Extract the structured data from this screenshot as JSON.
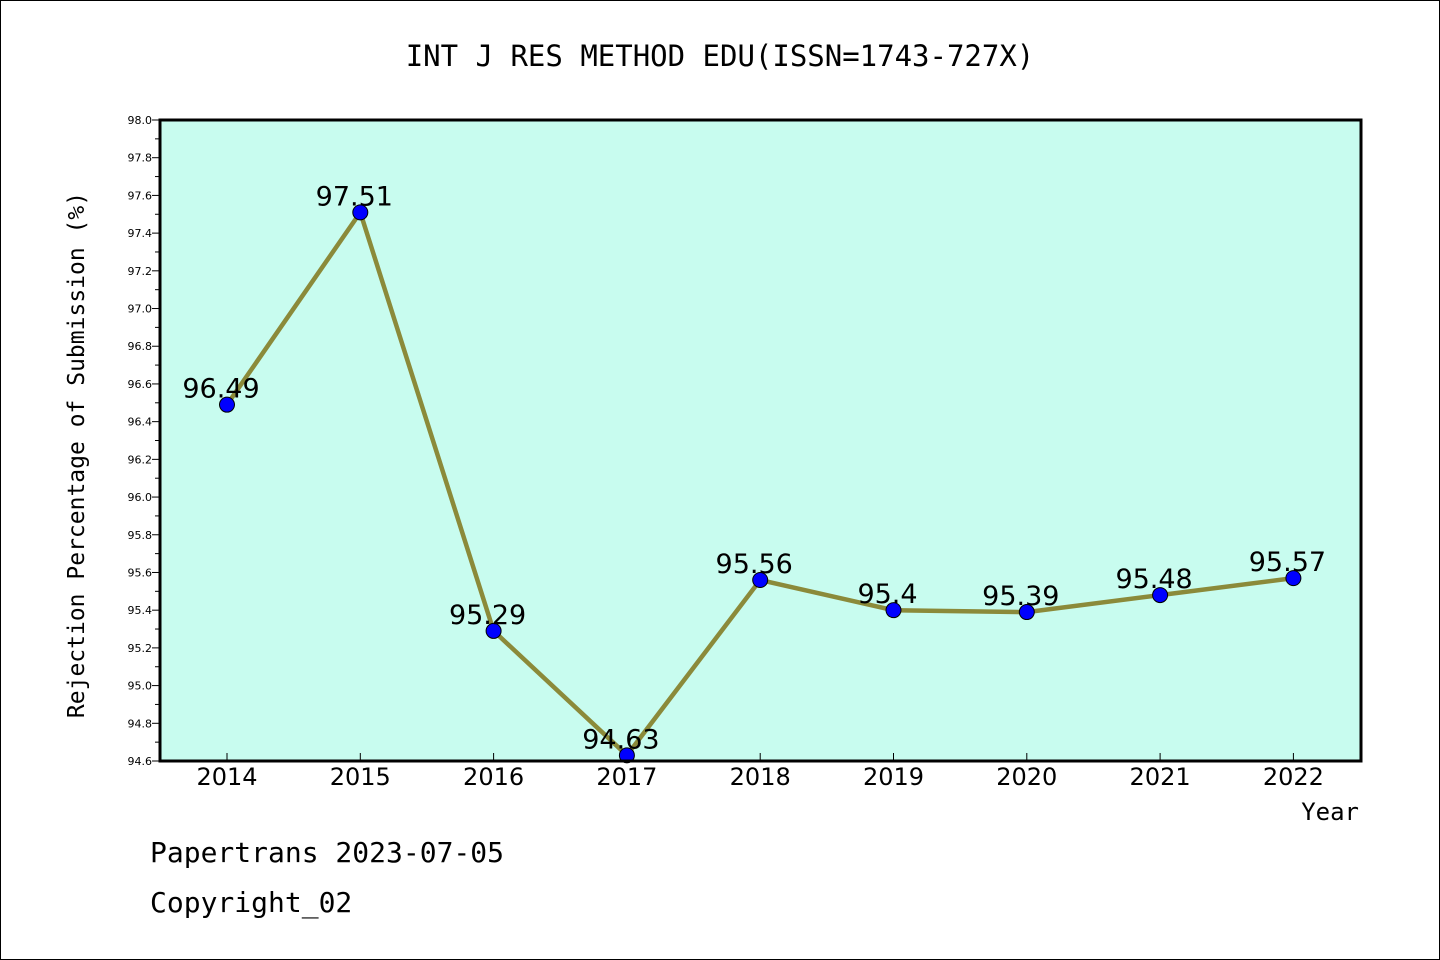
{
  "chart_data": {
    "type": "line",
    "title": "INT J RES METHOD EDU(ISSN=1743-727X)",
    "xlabel": "Year",
    "ylabel": "Rejection Percentage of Submission (%)",
    "categories": [
      "2014",
      "2015",
      "2016",
      "2017",
      "2018",
      "2019",
      "2020",
      "2021",
      "2022"
    ],
    "values": [
      96.49,
      97.51,
      95.29,
      94.63,
      95.56,
      95.4,
      95.39,
      95.48,
      95.57
    ],
    "data_labels": [
      "96.49",
      "97.51",
      "95.29",
      "94.63",
      "95.56",
      "95.4",
      "95.39",
      "95.48",
      "95.57"
    ],
    "ylim": [
      94.6,
      98.0
    ],
    "yticks": [
      "94.6",
      "94.8",
      "95.0",
      "95.2",
      "95.4",
      "95.6",
      "95.8",
      "96.0",
      "96.2",
      "96.4",
      "96.6",
      "96.8",
      "97.0",
      "97.2",
      "97.4",
      "97.6",
      "97.8",
      "98.0"
    ],
    "grid": false,
    "colors": {
      "plot_background": "#c8fcef",
      "line": "#8b8a3a",
      "marker": "#0000ff"
    }
  },
  "footer": {
    "line1": "Papertrans 2023-07-05",
    "line2": "Copyright_02"
  }
}
